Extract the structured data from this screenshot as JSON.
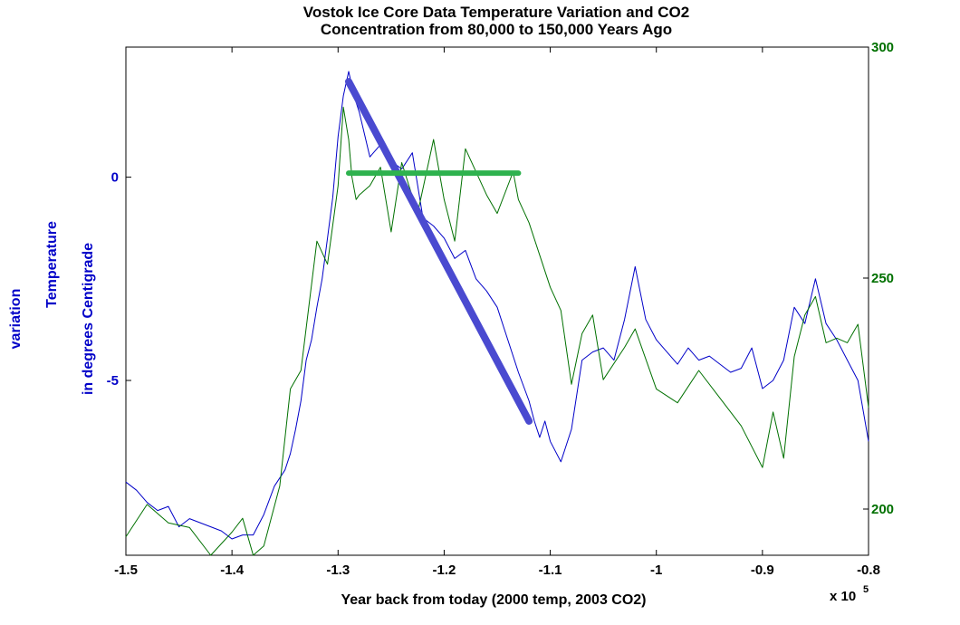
{
  "chart_data": {
    "type": "line",
    "title": [
      "Vostok Ice Core Data Temperature Variation and CO2",
      "Concentration from 80,000 to 150,000 Years Ago"
    ],
    "xlabel": "Year back from today (2000 temp, 2003 CO2)",
    "x_multiplier": {
      "base": "x 10",
      "exponent": "5"
    },
    "ylabel_left": [
      "Temperature",
      "variation",
      "in degrees Centigrade"
    ],
    "xlim": [
      -1.5,
      -0.8
    ],
    "xticks": [
      -1.5,
      -1.4,
      -1.3,
      -1.2,
      -1.1,
      -1,
      -0.9,
      -0.8
    ],
    "xtick_labels": [
      "-1.5",
      "-1.4",
      "-1.3",
      "-1.2",
      "-1.1",
      "-1",
      "-0.9",
      "-0.8"
    ],
    "ylim_left": [
      -9.3,
      3.2
    ],
    "yticks_left": [
      0,
      -5
    ],
    "ytick_labels_left": [
      "0",
      "-5"
    ],
    "ylim_right": [
      190,
      300
    ],
    "yticks_right": [
      300,
      250,
      200
    ],
    "ytick_labels_right": [
      "300",
      "250",
      "200"
    ],
    "grid": false,
    "colors": {
      "temperature": "#0000c8",
      "co2": "#007000",
      "trend": "#4a4ad0",
      "flat": "#2eb24e"
    },
    "series": [
      {
        "axis": "left",
        "color": "#0000c8",
        "stroke_width": 1,
        "x": [
          -1.5,
          -1.49,
          -1.48,
          -1.47,
          -1.46,
          -1.45,
          -1.44,
          -1.43,
          -1.42,
          -1.41,
          -1.4,
          -1.39,
          -1.38,
          -1.37,
          -1.36,
          -1.35,
          -1.345,
          -1.34,
          -1.335,
          -1.33,
          -1.325,
          -1.32,
          -1.315,
          -1.31,
          -1.305,
          -1.3,
          -1.295,
          -1.29,
          -1.285,
          -1.28,
          -1.27,
          -1.26,
          -1.25,
          -1.24,
          -1.23,
          -1.22,
          -1.21,
          -1.2,
          -1.19,
          -1.18,
          -1.17,
          -1.16,
          -1.15,
          -1.14,
          -1.13,
          -1.12,
          -1.115,
          -1.11,
          -1.105,
          -1.1,
          -1.09,
          -1.08,
          -1.07,
          -1.06,
          -1.05,
          -1.04,
          -1.03,
          -1.02,
          -1.01,
          -1,
          -0.99,
          -0.98,
          -0.97,
          -0.96,
          -0.95,
          -0.94,
          -0.93,
          -0.92,
          -0.91,
          -0.9,
          -0.89,
          -0.88,
          -0.87,
          -0.86,
          -0.85,
          -0.84,
          -0.83,
          -0.82,
          -0.81,
          -0.8
        ],
        "y": [
          -7.5,
          -7.7,
          -8.0,
          -8.2,
          -8.1,
          -8.6,
          -8.4,
          -8.5,
          -8.6,
          -8.7,
          -8.9,
          -8.8,
          -8.8,
          -8.3,
          -7.6,
          -7.2,
          -6.8,
          -6.2,
          -5.5,
          -4.5,
          -4.0,
          -3.2,
          -2.5,
          -1.5,
          -0.5,
          1.0,
          2.0,
          2.6,
          2.0,
          1.6,
          0.5,
          0.8,
          0.4,
          0.2,
          0.6,
          -1.0,
          -1.2,
          -1.5,
          -2.0,
          -1.8,
          -2.5,
          -2.8,
          -3.2,
          -4.0,
          -4.8,
          -5.5,
          -6.0,
          -6.4,
          -6.0,
          -6.5,
          -7.0,
          -6.2,
          -4.5,
          -4.3,
          -4.2,
          -4.5,
          -3.5,
          -2.2,
          -3.5,
          -4.0,
          -4.3,
          -4.6,
          -4.2,
          -4.5,
          -4.4,
          -4.6,
          -4.8,
          -4.7,
          -4.2,
          -5.2,
          -5.0,
          -4.5,
          -3.2,
          -3.6,
          -2.5,
          -3.6,
          -4.0,
          -4.5,
          -5.0,
          -6.5
        ]
      },
      {
        "axis": "right",
        "color": "#007000",
        "stroke_width": 1,
        "x": [
          -1.5,
          -1.48,
          -1.46,
          -1.44,
          -1.42,
          -1.4,
          -1.39,
          -1.38,
          -1.37,
          -1.355,
          -1.345,
          -1.335,
          -1.32,
          -1.31,
          -1.3,
          -1.295,
          -1.29,
          -1.287,
          -1.283,
          -1.28,
          -1.27,
          -1.26,
          -1.25,
          -1.24,
          -1.225,
          -1.21,
          -1.2,
          -1.19,
          -1.18,
          -1.16,
          -1.15,
          -1.14,
          -1.135,
          -1.13,
          -1.12,
          -1.1,
          -1.09,
          -1.08,
          -1.07,
          -1.06,
          -1.05,
          -1.03,
          -1.02,
          -1.0,
          -0.98,
          -0.96,
          -0.94,
          -0.92,
          -0.9,
          -0.89,
          -0.88,
          -0.87,
          -0.86,
          -0.85,
          -0.84,
          -0.83,
          -0.82,
          -0.81,
          -0.8
        ],
        "y": [
          194,
          201,
          197,
          196,
          190,
          195,
          198,
          190,
          192,
          205,
          226,
          230,
          258,
          253,
          270,
          287,
          280,
          272,
          267,
          268,
          270,
          274,
          260,
          275,
          264,
          280,
          267,
          258,
          278,
          268,
          264,
          270,
          273,
          267,
          262,
          248,
          243,
          227,
          238,
          242,
          228,
          235,
          239,
          226,
          223,
          230,
          224,
          218,
          209,
          221,
          211,
          233,
          242,
          246,
          236,
          237,
          236,
          240,
          222
        ]
      },
      {
        "axis": "left",
        "color": "#4a4ad0",
        "stroke_width": 8,
        "x": [
          -1.29,
          -1.12
        ],
        "y": [
          2.35,
          -6.0
        ]
      },
      {
        "axis": "left",
        "color": "#2eb24e",
        "stroke_width": 6,
        "x": [
          -1.29,
          -1.13
        ],
        "y": [
          0.1,
          0.1
        ]
      }
    ]
  }
}
